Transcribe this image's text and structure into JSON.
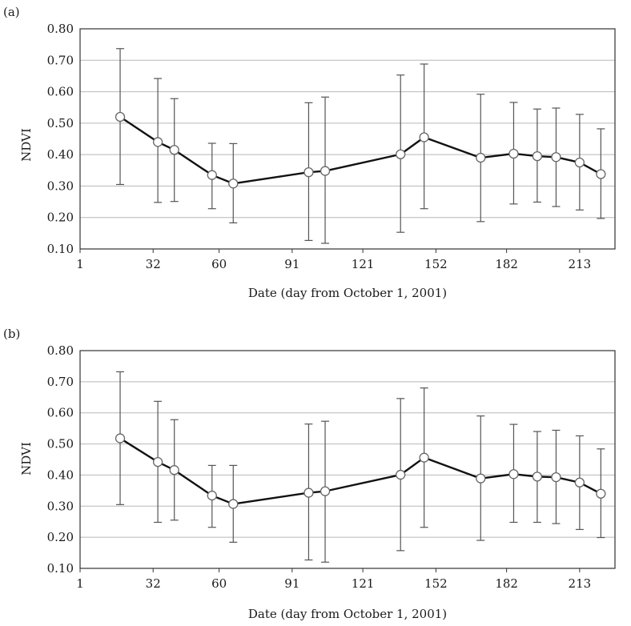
{
  "chart_data": [
    {
      "panel_label": "(a)",
      "type": "line",
      "xlabel": "Date (day from October 1, 2001)",
      "ylabel": "NDVI",
      "xlim": [
        1,
        228
      ],
      "ylim": [
        0.1,
        0.8
      ],
      "x_ticks": [
        1,
        32,
        60,
        91,
        121,
        152,
        182,
        213
      ],
      "y_ticks": [
        0.1,
        0.2,
        0.3,
        0.4,
        0.5,
        0.6,
        0.7,
        0.8
      ],
      "y_tick_labels": [
        "0.10",
        "0.20",
        "0.30",
        "0.40",
        "0.50",
        "0.60",
        "0.70",
        "0.80"
      ],
      "grid": "horizontal",
      "series": [
        {
          "points": [
            {
              "x": 18,
              "y": 0.52,
              "low": 0.305,
              "high": 0.737
            },
            {
              "x": 34,
              "y": 0.44,
              "low": 0.248,
              "high": 0.642
            },
            {
              "x": 41,
              "y": 0.415,
              "low": 0.251,
              "high": 0.578
            },
            {
              "x": 57,
              "y": 0.335,
              "low": 0.228,
              "high": 0.436
            },
            {
              "x": 66,
              "y": 0.308,
              "low": 0.183,
              "high": 0.435
            },
            {
              "x": 98,
              "y": 0.344,
              "low": 0.127,
              "high": 0.565
            },
            {
              "x": 105,
              "y": 0.348,
              "low": 0.118,
              "high": 0.583
            },
            {
              "x": 137,
              "y": 0.401,
              "low": 0.153,
              "high": 0.653
            },
            {
              "x": 147,
              "y": 0.455,
              "low": 0.228,
              "high": 0.688
            },
            {
              "x": 171,
              "y": 0.39,
              "low": 0.187,
              "high": 0.592
            },
            {
              "x": 185,
              "y": 0.403,
              "low": 0.243,
              "high": 0.566
            },
            {
              "x": 195,
              "y": 0.395,
              "low": 0.249,
              "high": 0.545
            },
            {
              "x": 203,
              "y": 0.392,
              "low": 0.235,
              "high": 0.548
            },
            {
              "x": 213,
              "y": 0.375,
              "low": 0.224,
              "high": 0.528
            },
            {
              "x": 222,
              "y": 0.338,
              "low": 0.197,
              "high": 0.482
            }
          ]
        }
      ]
    },
    {
      "panel_label": "(b)",
      "type": "line",
      "xlabel": "Date (day from October 1, 2001)",
      "ylabel": "NDVI",
      "xlim": [
        1,
        228
      ],
      "ylim": [
        0.1,
        0.8
      ],
      "x_ticks": [
        1,
        32,
        60,
        91,
        121,
        152,
        182,
        213
      ],
      "y_ticks": [
        0.1,
        0.2,
        0.3,
        0.4,
        0.5,
        0.6,
        0.7,
        0.8
      ],
      "y_tick_labels": [
        "0.10",
        "0.20",
        "0.30",
        "0.40",
        "0.50",
        "0.60",
        "0.70",
        "0.80"
      ],
      "grid": "horizontal",
      "series": [
        {
          "points": [
            {
              "x": 18,
              "y": 0.518,
              "low": 0.305,
              "high": 0.732
            },
            {
              "x": 34,
              "y": 0.442,
              "low": 0.248,
              "high": 0.637
            },
            {
              "x": 41,
              "y": 0.416,
              "low": 0.255,
              "high": 0.578
            },
            {
              "x": 57,
              "y": 0.334,
              "low": 0.232,
              "high": 0.431
            },
            {
              "x": 66,
              "y": 0.307,
              "low": 0.184,
              "high": 0.431
            },
            {
              "x": 98,
              "y": 0.343,
              "low": 0.127,
              "high": 0.564
            },
            {
              "x": 105,
              "y": 0.348,
              "low": 0.12,
              "high": 0.573
            },
            {
              "x": 137,
              "y": 0.401,
              "low": 0.157,
              "high": 0.646
            },
            {
              "x": 147,
              "y": 0.456,
              "low": 0.232,
              "high": 0.68
            },
            {
              "x": 171,
              "y": 0.389,
              "low": 0.19,
              "high": 0.59
            },
            {
              "x": 185,
              "y": 0.403,
              "low": 0.248,
              "high": 0.563
            },
            {
              "x": 195,
              "y": 0.395,
              "low": 0.248,
              "high": 0.54
            },
            {
              "x": 203,
              "y": 0.393,
              "low": 0.244,
              "high": 0.544
            },
            {
              "x": 213,
              "y": 0.376,
              "low": 0.225,
              "high": 0.526
            },
            {
              "x": 222,
              "y": 0.34,
              "low": 0.199,
              "high": 0.484
            }
          ]
        }
      ]
    }
  ]
}
